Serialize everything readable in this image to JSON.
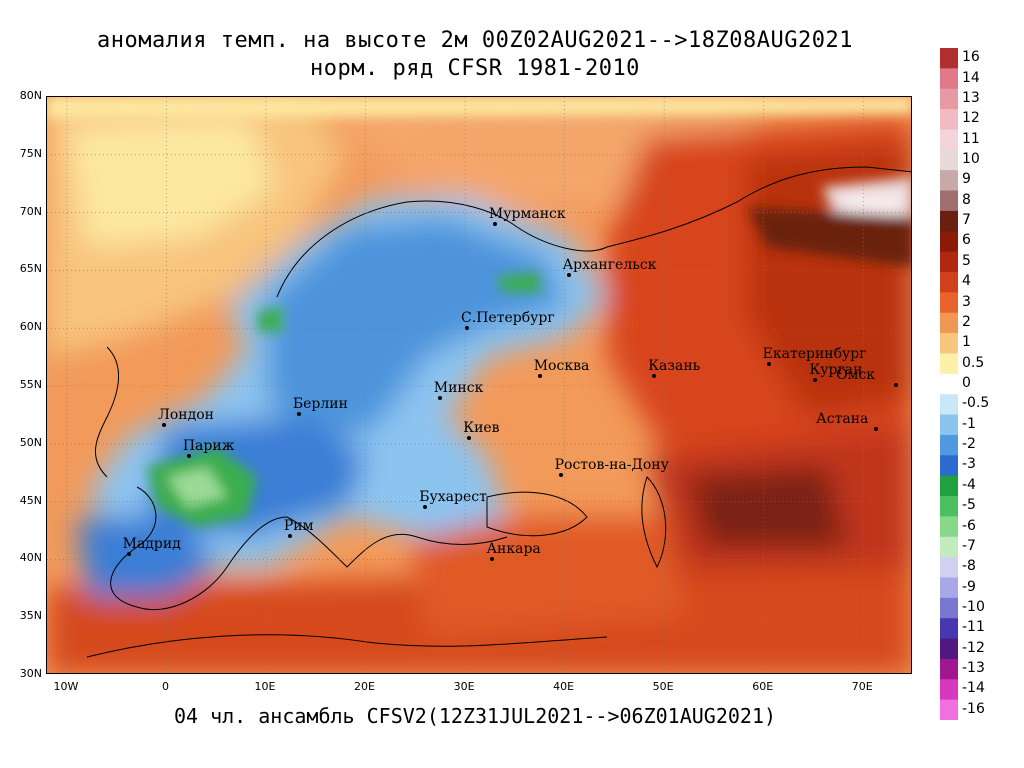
{
  "title": {
    "line1": "аномалия темп. на высоте 2м 00Z02AUG2021-->18Z08AUG2021",
    "line2": "норм. ряд CFSR 1981-2010"
  },
  "footer": "04 чл. ансамбль CFSV2(12Z31JUL2021-->06Z01AUG2021)",
  "lat_labels": [
    "80N",
    "75N",
    "70N",
    "65N",
    "60N",
    "55N",
    "50N",
    "45N",
    "40N",
    "35N",
    "30N"
  ],
  "lon_labels": [
    "10W",
    "0",
    "10E",
    "20E",
    "30E",
    "40E",
    "50E",
    "60E",
    "70E"
  ],
  "colorbar": {
    "labels": [
      "16",
      "14",
      "13",
      "12",
      "11",
      "10",
      "9",
      "8",
      "7",
      "6",
      "5",
      "4",
      "3",
      "2",
      "1",
      "0.5",
      "0",
      "-0.5",
      "-1",
      "-2",
      "-3",
      "-4",
      "-5",
      "-6",
      "-7",
      "-8",
      "-9",
      "-10",
      "-11",
      "-12",
      "-13",
      "-14",
      "-16"
    ],
    "colors": [
      "#b03030",
      "#e07a88",
      "#e89aa4",
      "#f0bcc4",
      "#f4d4d8",
      "#e8d8d8",
      "#c8a8a8",
      "#a07070",
      "#6a2010",
      "#8a1a0a",
      "#b02810",
      "#d0401a",
      "#e8642c",
      "#f29656",
      "#f8c67c",
      "#fdf0a8",
      "#ffffff",
      "#c8e8f8",
      "#8cc4f0",
      "#5098e0",
      "#2c6ad0",
      "#20a040",
      "#4cc060",
      "#88d88c",
      "#c0ecc0",
      "#d0d0f0",
      "#a8a8e8",
      "#7878d0",
      "#4838b0",
      "#501880",
      "#a01890",
      "#d838c0",
      "#f070e0"
    ]
  },
  "cities": [
    {
      "name": "Мурманск",
      "lon": 33.1,
      "lat": 68.97
    },
    {
      "name": "Архангельск",
      "lon": 40.5,
      "lat": 64.54
    },
    {
      "name": "С.Петербург",
      "lon": 30.3,
      "lat": 59.94
    },
    {
      "name": "Москва",
      "lon": 37.6,
      "lat": 55.75
    },
    {
      "name": "Казань",
      "lon": 49.1,
      "lat": 55.8
    },
    {
      "name": "Екатеринбург",
      "lon": 60.6,
      "lat": 56.84
    },
    {
      "name": "Курган",
      "lon": 65.3,
      "lat": 55.45
    },
    {
      "name": "Омск",
      "lon": 73.4,
      "lat": 54.99
    },
    {
      "name": "Астана",
      "lon": 71.4,
      "lat": 51.17
    },
    {
      "name": "Минск",
      "lon": 27.56,
      "lat": 53.9
    },
    {
      "name": "Киев",
      "lon": 30.52,
      "lat": 50.45
    },
    {
      "name": "Ростов-на-Дону",
      "lon": 39.7,
      "lat": 47.23
    },
    {
      "name": "Берлин",
      "lon": 13.4,
      "lat": 52.52
    },
    {
      "name": "Лондон",
      "lon": -0.13,
      "lat": 51.5
    },
    {
      "name": "Париж",
      "lon": 2.35,
      "lat": 48.86
    },
    {
      "name": "Бухарест",
      "lon": 26.1,
      "lat": 44.43
    },
    {
      "name": "Рим",
      "lon": 12.5,
      "lat": 41.9
    },
    {
      "name": "Мадрид",
      "lon": -3.7,
      "lat": 40.42
    },
    {
      "name": "Анкара",
      "lon": 32.85,
      "lat": 39.93
    }
  ]
}
